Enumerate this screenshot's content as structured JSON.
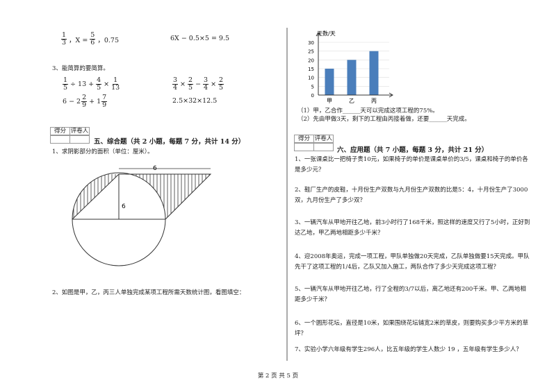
{
  "header_eqs": {
    "left": [
      {
        "n": "1",
        "d": "3"
      },
      "，X =",
      {
        "n": "5",
        "d": "6"
      },
      "，0.75"
    ],
    "right": [
      "6X − 0.5×5 = 9.5"
    ]
  },
  "q3": {
    "prompt": "3、能简算的要简算。",
    "exprs": [
      [
        {
          "n": "1",
          "d": "5"
        },
        "÷ 13 +",
        {
          "n": "4",
          "d": "5"
        },
        "×",
        {
          "n": "1",
          "d": "13"
        }
      ],
      [
        {
          "n": "3",
          "d": "4"
        },
        "×",
        {
          "n": "2",
          "d": "5"
        },
        "−",
        {
          "n": "3",
          "d": "4"
        },
        "×",
        {
          "n": "2",
          "d": "5"
        }
      ],
      [
        "6 −",
        {
          "w": "2",
          "n": "2",
          "d": "9"
        },
        "+",
        {
          "w": "1",
          "n": "7",
          "d": "9"
        }
      ],
      [
        "2.5×32×12.5"
      ]
    ]
  },
  "score_box": {
    "score": "得分",
    "grader": "评卷人"
  },
  "section5": {
    "heading": "五、综合题（共 2 小题，每题 7 分，共计 14 分）",
    "q1": "1、求阴影部分的面积（单位：厘米）。",
    "fig_top": "6",
    "fig_mid": "6",
    "q2": "2、如图是甲，乙，丙三人单独完成某项工程所需天数统计图，看图填空："
  },
  "chart_data": {
    "type": "bar",
    "y_label": "天数/天",
    "categories": [
      "甲",
      "乙",
      "丙"
    ],
    "values": [
      15,
      20,
      25
    ],
    "color": "#4a7ebb",
    "ylim": [
      0,
      30
    ],
    "yticks": [
      0,
      5,
      10,
      15,
      20,
      25,
      30
    ]
  },
  "chart_questions": [
    "（1）甲，乙合作______天可以完成这项工程的75%。",
    "（2）先由甲做3天，剩下的工程由丙接着做，还要______天完成。"
  ],
  "section6": {
    "heading": "六、应用题（共 7 小题，每题 3 分，共计 21 分）",
    "questions": [
      "1、一张课桌比一把椅子贵10元，如果椅子的单价是课桌单价的3/5，课桌和椅子的单价各是多少元？",
      "2、鞋厂生产的皮鞋，十月份生产双数与九月份生产双数的比是5：4，十月份生产了3000双，九月份生产了多少双？",
      "3、一辆汽车从甲地开往乙地，前3小时行了168千米，照这样的速度又行了5小时，正好到达乙地，甲乙两地相距多少千米？",
      "4、迎2008年奥运，完成一项工程，甲队单独做20天完成，乙队单独做要15天完成。甲队先干了这项工程的1/4后，乙队又加入施工，两队合作了多少天完成这项工程？",
      "5、一辆汽车从甲地开往乙地，行了全程的3/7以后，离乙地还有200千米。甲、乙两地相距多少千米？",
      "6、一个圆形花坛，直径是10米，如果围绕花坛铺宽2米的草皮，则要购买多少平方米的草坪？",
      "7、实验小学六年级有学生296人，比五年级的学生人数少 19 ，五年级有学生多少人？"
    ]
  },
  "footer": "第 2 页 共 5 页"
}
